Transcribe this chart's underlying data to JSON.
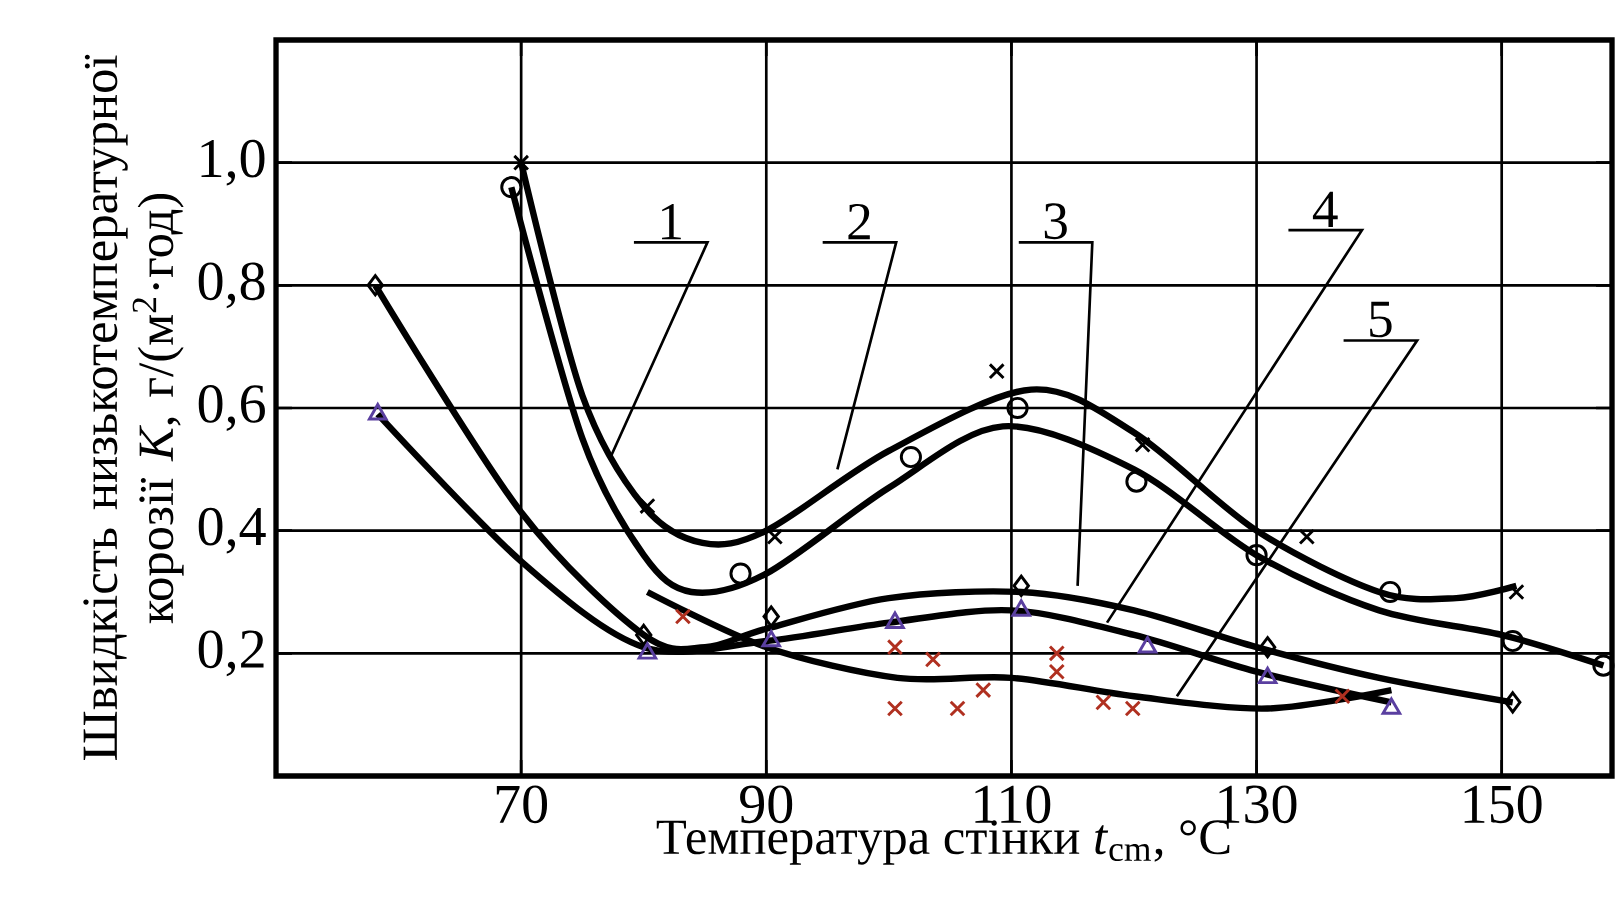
{
  "chart_data": {
    "type": "line",
    "xlabel": "Температура стінки *t*$_{cm}$, °C",
    "ylabel": "Швидкість низькотемпературної корозії *K*, г/(м$^{2}$·год)",
    "xlim": [
      50,
      159
    ],
    "ylim": [
      0,
      1.2
    ],
    "xticks": [
      70,
      90,
      110,
      130,
      150
    ],
    "yticks": [
      {
        "value": 0.2,
        "label": "0,2"
      },
      {
        "value": 0.4,
        "label": "0,4"
      },
      {
        "value": 0.6,
        "label": "0,6"
      },
      {
        "value": 0.8,
        "label": "0,8"
      },
      {
        "value": 1.0,
        "label": "1,0"
      }
    ],
    "grid": true,
    "series": [
      {
        "color": "#000000",
        "marker": "none",
        "x": [
          70,
          75,
          80,
          84.8,
          90,
          100,
          111.6,
          120,
          130,
          140,
          146.3,
          151.2
        ],
        "values": [
          1.0,
          0.62,
          0.44,
          0.38,
          0.4,
          0.53,
          0.63,
          0.56,
          0.4,
          0.3,
          0.29,
          0.31
        ]
      },
      {
        "color": "#000000",
        "marker": "none",
        "x": [
          69.2,
          75,
          80,
          83.9,
          90,
          100,
          109.3,
          120,
          130,
          140,
          150,
          158.3
        ],
        "values": [
          0.96,
          0.55,
          0.36,
          0.3,
          0.33,
          0.47,
          0.57,
          0.5,
          0.36,
          0.27,
          0.23,
          0.18
        ]
      },
      {
        "color": "#000000",
        "marker": "none",
        "x": [
          58.1,
          70,
          80,
          85,
          90,
          100,
          110.8,
          120,
          130,
          140,
          150.9
        ],
        "values": [
          0.8,
          0.43,
          0.23,
          0.21,
          0.24,
          0.29,
          0.3,
          0.27,
          0.21,
          0.16,
          0.12
        ]
      },
      {
        "color": "#000000",
        "marker": "none",
        "x": [
          58.3,
          70,
          80,
          90,
          100,
          110,
          120,
          130,
          141
        ],
        "values": [
          0.59,
          0.35,
          0.21,
          0.22,
          0.25,
          0.27,
          0.23,
          0.17,
          0.12
        ]
      },
      {
        "color": "#000000",
        "marker": "none",
        "x": [
          80.3,
          90,
          100.7,
          110,
          120,
          130.9,
          141
        ],
        "values": [
          0.3,
          0.21,
          0.16,
          0.16,
          0.13,
          0.11,
          0.14
        ]
      },
      {
        "type": "scatter",
        "color": "#000000",
        "marker": "cross",
        "x": [
          70,
          80.3,
          90.7,
          108.8,
          120.7,
          134.1,
          151.2
        ],
        "values": [
          1.0,
          0.44,
          0.39,
          0.66,
          0.54,
          0.39,
          0.3
        ]
      },
      {
        "type": "scatter",
        "color": "#000000",
        "marker": "circle",
        "x": [
          69.2,
          87.9,
          101.8,
          110.5,
          120.2,
          130,
          140.9,
          150.9,
          158.3
        ],
        "values": [
          0.96,
          0.33,
          0.52,
          0.6,
          0.48,
          0.36,
          0.3,
          0.22,
          0.18
        ]
      },
      {
        "type": "scatter",
        "color": "#000000",
        "marker": "diamond",
        "x": [
          58.1,
          80,
          90.4,
          110.8,
          130.9,
          150.9
        ],
        "values": [
          0.8,
          0.23,
          0.26,
          0.31,
          0.21,
          0.12
        ]
      },
      {
        "type": "scatter",
        "color": "#5a3fa0",
        "marker": "triangle",
        "x": [
          58.3,
          80.3,
          90.4,
          100.5,
          110.8,
          121.1,
          130.9,
          141
        ],
        "values": [
          0.59,
          0.2,
          0.22,
          0.25,
          0.27,
          0.21,
          0.16,
          0.11
        ]
      },
      {
        "type": "scatter",
        "color": "#b03020",
        "marker": "cross",
        "x": [
          83.2,
          100.5,
          103.6,
          100.5,
          105.6,
          107.7,
          113.7,
          113.7,
          117.5,
          119.9,
          137
        ],
        "values": [
          0.26,
          0.21,
          0.19,
          0.11,
          0.11,
          0.14,
          0.2,
          0.17,
          0.12,
          0.11,
          0.13
        ]
      }
    ],
    "annotations": [
      {
        "text": "1",
        "x": 77.3,
        "y": 0.52
      },
      {
        "text": "2",
        "x": 95.8,
        "y": 0.5
      },
      {
        "text": "3",
        "x": 115.4,
        "y": 0.31
      },
      {
        "text": "4",
        "x": 117.8,
        "y": 0.25
      },
      {
        "text": "5",
        "x": 123.5,
        "y": 0.13
      }
    ]
  }
}
